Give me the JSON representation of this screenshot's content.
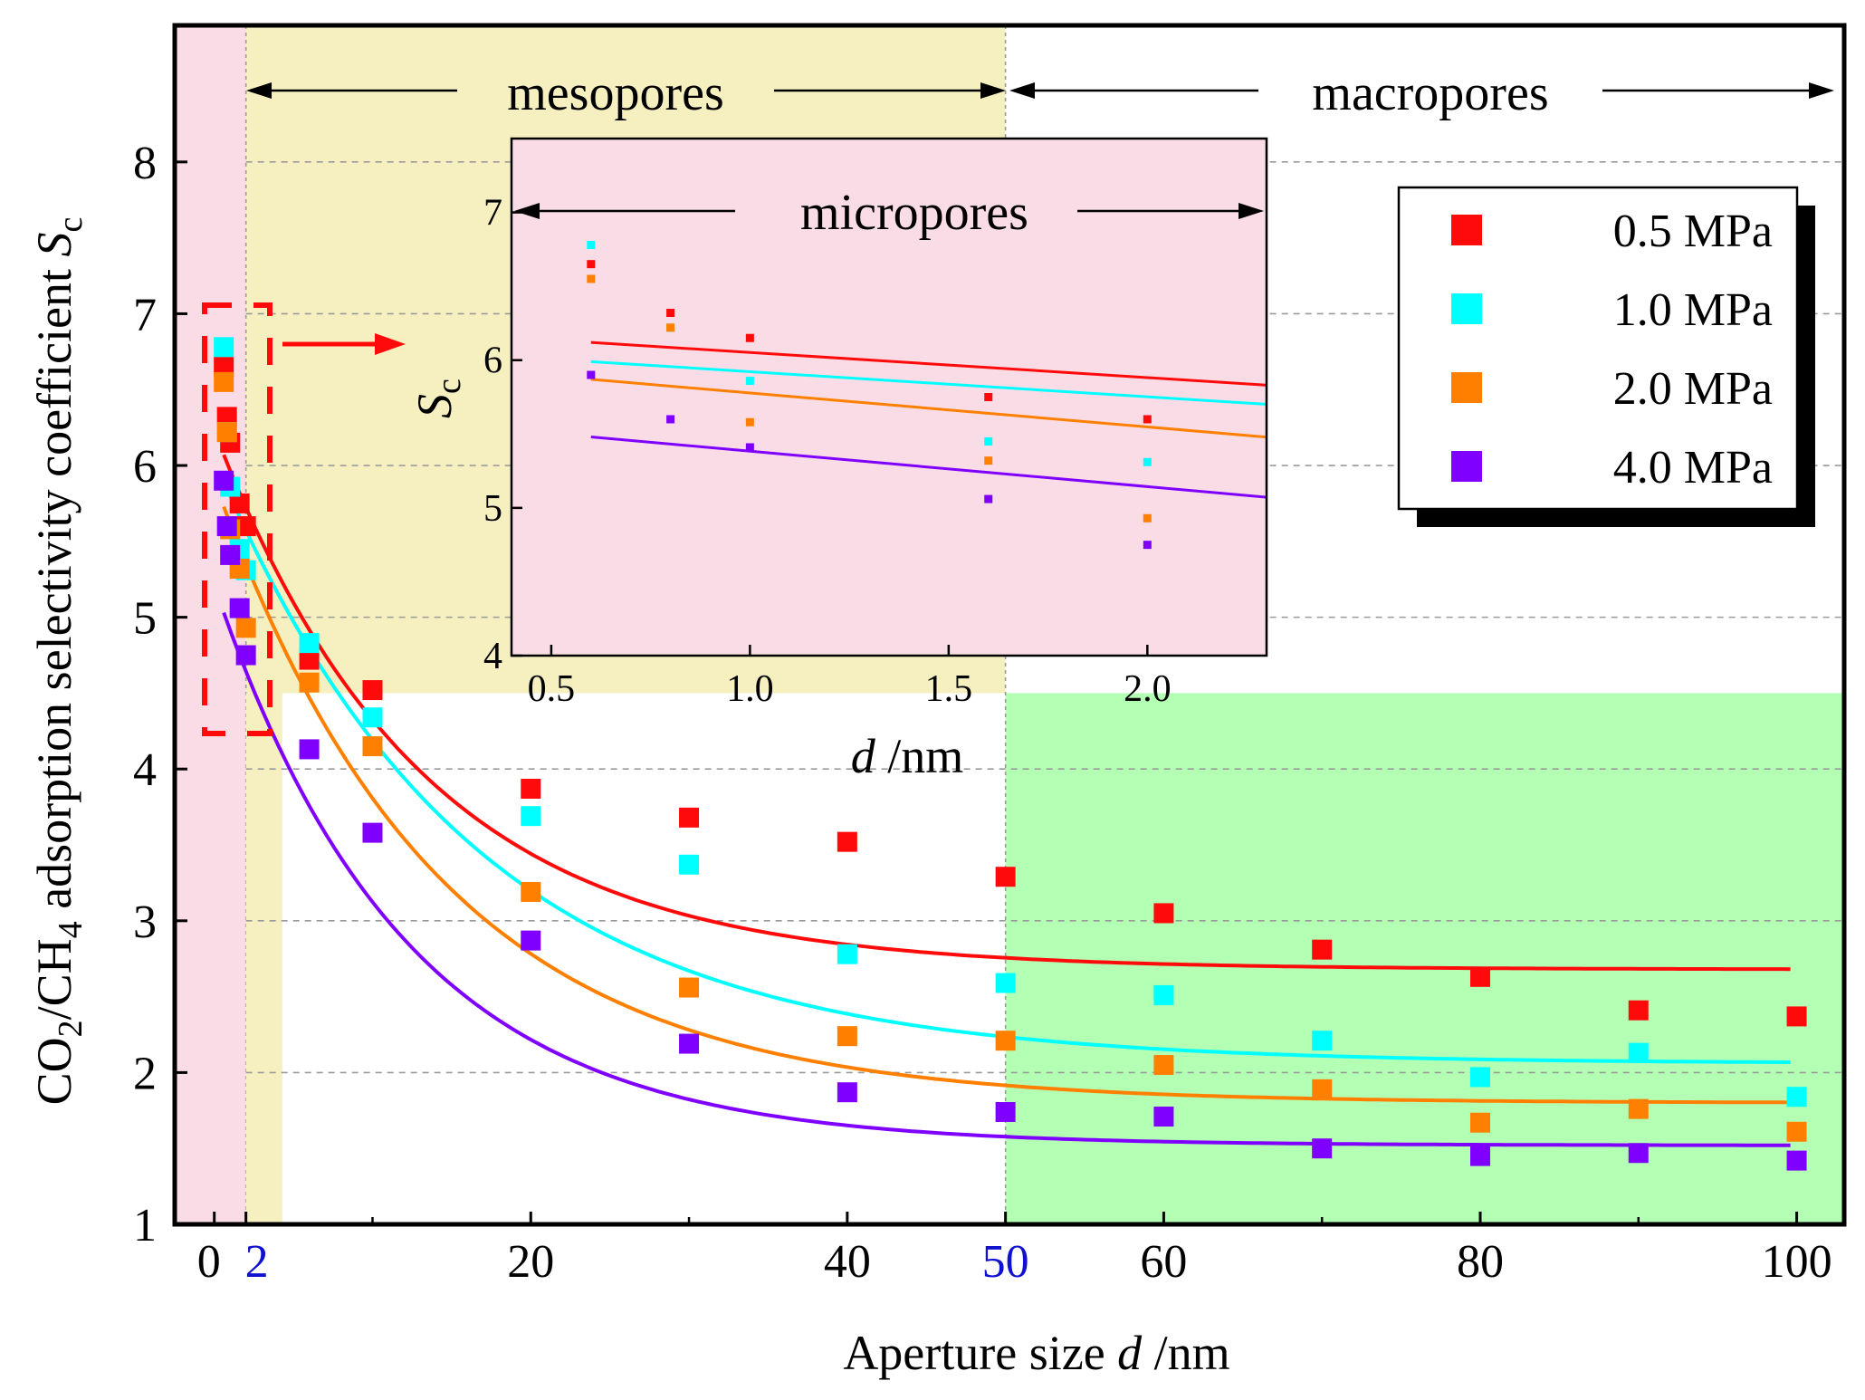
{
  "chart_data": {
    "type": "scatter",
    "xlabel": "Aperture size",
    "xlabel_var": "d",
    "xlabel_unit": " /nm",
    "ylabel_pre": "CO",
    "ylabel_sub1": "2",
    "ylabel_mid": "/CH",
    "ylabel_sub2": "4",
    "ylabel_post": " adsorption selectivity coefficient ",
    "ylabel_var": "S",
    "ylabel_var_sub": "c",
    "xlim": [
      -2.5,
      103
    ],
    "ylim": [
      1,
      8.9
    ],
    "x_ticks": [
      "0",
      "2",
      "20",
      "40",
      "50",
      "60",
      "80",
      "100"
    ],
    "x_tick_values": [
      0,
      2,
      20,
      40,
      50,
      60,
      80,
      100
    ],
    "x_tick_highlight_color": "#1010d0",
    "y_ticks": [
      "1",
      "2",
      "3",
      "4",
      "5",
      "6",
      "7",
      "8"
    ],
    "y_tick_values": [
      1,
      2,
      3,
      4,
      5,
      6,
      7,
      8
    ],
    "regions": {
      "mesopores_label": "mesopores",
      "macropores_label": "macropores",
      "micropores_label": "micropores",
      "micro_color": "#f9dce6",
      "meso_color": "#f6f0c0",
      "macro_color": "#b3ffb3"
    },
    "x": [
      0.6,
      0.8,
      1.0,
      1.6,
      2.0,
      6,
      10,
      20,
      30,
      40,
      50,
      60,
      70,
      80,
      90,
      100
    ],
    "series": [
      {
        "name": "0.5 MPa",
        "color": "#ff0a0a",
        "values": [
          6.65,
          6.32,
          6.15,
          5.75,
          5.6,
          4.72,
          4.52,
          3.87,
          3.68,
          3.52,
          3.29,
          3.05,
          2.81,
          2.63,
          2.41,
          2.37
        ],
        "fit": [
          2.68,
          3.55,
          13
        ]
      },
      {
        "name": "1.0 MPa",
        "color": "#00ffff",
        "values": [
          6.78,
          6.22,
          5.86,
          5.45,
          5.31,
          4.83,
          4.34,
          3.69,
          3.37,
          2.78,
          2.59,
          2.51,
          2.21,
          1.97,
          2.13,
          1.84
        ],
        "fit": [
          2.06,
          3.98,
          16
        ]
      },
      {
        "name": "2.0 MPa",
        "color": "#ff8000",
        "values": [
          6.55,
          6.22,
          5.58,
          5.32,
          4.93,
          4.57,
          4.15,
          3.19,
          2.56,
          2.24,
          2.21,
          2.05,
          1.89,
          1.67,
          1.76,
          1.61
        ],
        "fit": [
          1.8,
          4.1,
          14
        ]
      },
      {
        "name": "4.0 MPa",
        "color": "#8000ff",
        "values": [
          5.9,
          5.6,
          5.41,
          5.06,
          4.75,
          4.13,
          3.58,
          2.87,
          2.19,
          1.87,
          1.74,
          1.71,
          1.5,
          1.45,
          1.47,
          1.42
        ],
        "fit": [
          1.52,
          3.69,
          12
        ]
      }
    ],
    "inset": {
      "xlabel_var": "d",
      "xlabel_unit": " /nm",
      "ylabel_var": "S",
      "ylabel_var_sub": "c",
      "xlim": [
        0.4,
        2.3
      ],
      "ylim": [
        4,
        7.5
      ],
      "x_ticks": [
        "0.5",
        "1.0",
        "1.5",
        "2.0"
      ],
      "x_tick_values": [
        0.5,
        1.0,
        1.5,
        2.0
      ],
      "y_ticks": [
        "4",
        "5",
        "6",
        "7"
      ],
      "y_tick_values": [
        4,
        5,
        6,
        7
      ],
      "lines": [
        {
          "name": "0.5 MPa",
          "y_at_0_6": 6.12,
          "slope": -0.17
        },
        {
          "name": "1.0 MPa",
          "y_at_0_6": 5.99,
          "slope": -0.17
        },
        {
          "name": "2.0 MPa",
          "y_at_0_6": 5.87,
          "slope": -0.23
        },
        {
          "name": "4.0 MPa",
          "y_at_0_6": 5.48,
          "slope": -0.24
        }
      ]
    }
  }
}
